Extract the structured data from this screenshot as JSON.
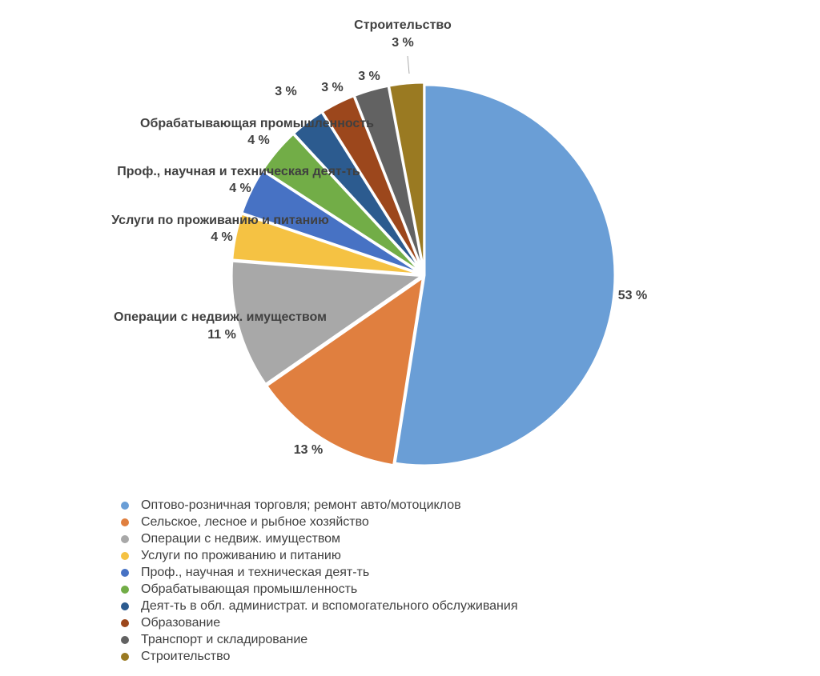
{
  "chart_data": {
    "type": "pie",
    "categories": [
      "Оптово-розничная торговля; ремонт авто/мотоциклов",
      "Сельское, лесное и рыбное хозяйство",
      "Операции с недвиж. имуществом",
      "Услуги по проживанию и питанию",
      "Проф., научная и техническая деят-ть",
      "Обрабатывающая промышленность",
      "Деят-ть в обл. администрат. и вспомогательного обслуживания",
      "Образование",
      "Транспорт и складирование",
      "Строительство"
    ],
    "values": [
      53,
      13,
      11,
      4,
      4,
      4,
      3,
      3,
      3,
      3
    ],
    "value_labels": [
      "53 %",
      "13 %",
      "11 %",
      "4 %",
      "4 %",
      "4 %",
      "3 %",
      "3 %",
      "3 %",
      "3 %"
    ],
    "colors": [
      "#6a9ed6",
      "#e07f3f",
      "#a8a8a8",
      "#f5c243",
      "#4772c4",
      "#72ad47",
      "#2c5b8f",
      "#9c471c",
      "#626262",
      "#9a7a22"
    ],
    "legend": "bottom"
  }
}
